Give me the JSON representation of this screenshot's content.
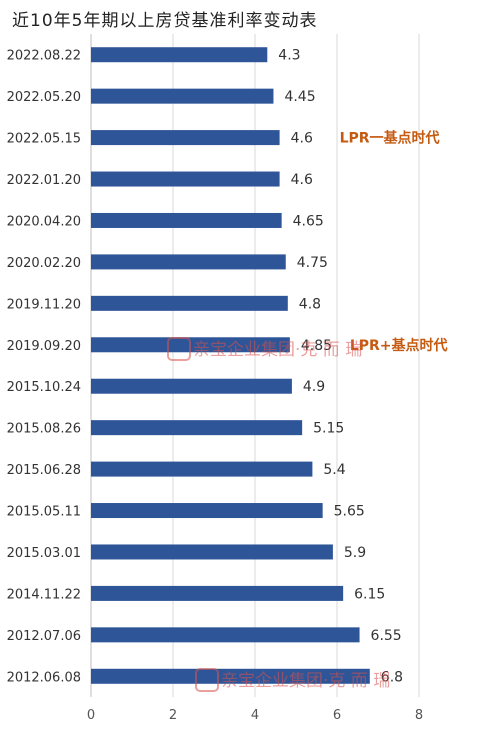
{
  "chart_data": {
    "type": "bar",
    "orientation": "horizontal",
    "title": "近10年5年期以上房贷基准利率变动表",
    "xlabel": "",
    "ylabel": "",
    "xlim": [
      0,
      9
    ],
    "xticks": [
      0,
      2,
      4,
      6,
      8
    ],
    "grid": true,
    "color": "#2e5597",
    "categories": [
      "2022.08.22",
      "2022.05.20",
      "2022.05.15",
      "2022.01.20",
      "2020.04.20",
      "2020.02.20",
      "2019.11.20",
      "2019.09.20",
      "2015.10.24",
      "2015.08.26",
      "2015.06.28",
      "2015.05.11",
      "2015.03.01",
      "2014.11.22",
      "2012.07.06",
      "2012.06.08"
    ],
    "values": [
      4.3,
      4.45,
      4.6,
      4.6,
      4.65,
      4.75,
      4.8,
      4.85,
      4.9,
      5.15,
      5.4,
      5.65,
      5.9,
      6.15,
      6.55,
      6.8
    ],
    "value_labels": [
      "4.3",
      "4.45",
      "4.6",
      "4.6",
      "4.65",
      "4.75",
      "4.8",
      "4.85",
      "4.9",
      "5.15",
      "5.4",
      "5.65",
      "5.9",
      "6.15",
      "6.55",
      "6.8"
    ],
    "annotations": [
      {
        "text": "LPR一基点时代",
        "category": "2022.05.15"
      },
      {
        "text": "LPR+基点时代",
        "category": "2019.09.20"
      }
    ],
    "watermark": "亲宝企业集团·克 而 瑞"
  }
}
